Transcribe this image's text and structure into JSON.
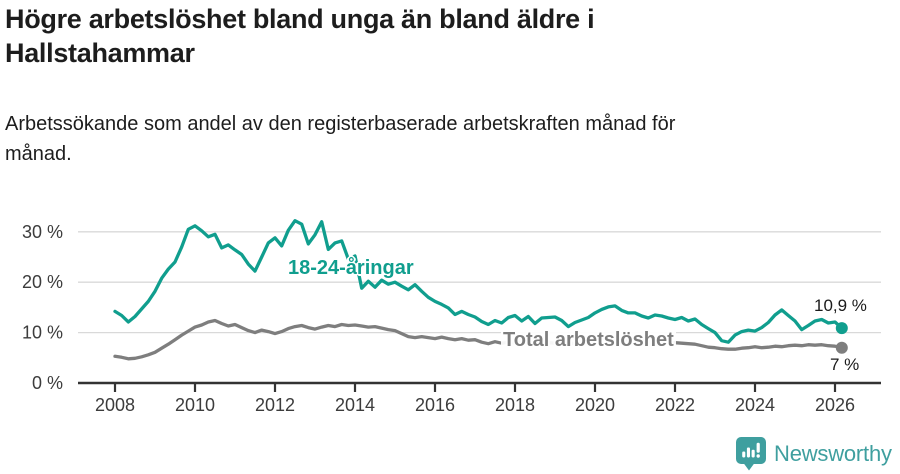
{
  "header": {
    "title": "Högre arbetslöshet bland unga än bland äldre i Hallstahammar",
    "title_lines": [
      "Högre arbetslöshet bland unga än bland äldre i",
      "Hallstahammar"
    ],
    "subtitle": "Arbetssökande som andel av den registerbaserade arbetskraften månad för månad.",
    "subtitle_lines": [
      "Arbetssökande som andel av den registerbaserade arbetskraften månad för",
      "månad."
    ]
  },
  "chart_data": {
    "type": "line",
    "title": "Högre arbetslöshet bland unga än bland äldre i Hallstahammar",
    "xlabel": "",
    "ylabel": "Arbetssökande som andel av den registerbaserade arbetskraften",
    "unit": "%",
    "grid": "horizontal",
    "legend_position": "inline-labels",
    "x_axis": {
      "ticks": [
        2008,
        2010,
        2012,
        2014,
        2016,
        2018,
        2020,
        2022,
        2024,
        2026
      ],
      "tick_labels": [
        "2008",
        "2010",
        "2012",
        "2014",
        "2016",
        "2018",
        "2020",
        "2022",
        "2024",
        "2026"
      ],
      "range": [
        2007.1,
        2027.2
      ]
    },
    "y_axis": {
      "ticks": [
        0,
        10,
        20,
        30
      ],
      "tick_labels": [
        "0 %",
        "10 %",
        "20 %",
        "30 %"
      ],
      "range": [
        0,
        33.5
      ]
    },
    "series": [
      {
        "name": "18-24-åringar",
        "label": "18-24-åringar",
        "color": "#109e8e",
        "start_year": 2008,
        "step_months": 2,
        "values": [
          14.2,
          13.4,
          12.1,
          13.2,
          14.7,
          16.2,
          18.2,
          20.8,
          22.6,
          24.0,
          27.0,
          30.5,
          31.2,
          30.2,
          29.0,
          29.5,
          26.8,
          27.4,
          26.4,
          25.5,
          23.6,
          22.2,
          25.0,
          27.8,
          28.8,
          27.2,
          30.3,
          32.2,
          31.5,
          27.6,
          29.4,
          32.0,
          26.5,
          27.8,
          28.2,
          24.6,
          25.2,
          18.8,
          20.2,
          19.0,
          20.4,
          19.6,
          20.0,
          19.2,
          18.5,
          19.5,
          18.2,
          17.0,
          16.2,
          15.6,
          14.9,
          13.6,
          14.2,
          13.6,
          13.1,
          12.2,
          11.6,
          12.4,
          11.9,
          13.0,
          13.4,
          12.3,
          13.2,
          11.8,
          12.9,
          13.0,
          13.1,
          12.4,
          11.2,
          12.0,
          12.5,
          13.0,
          13.9,
          14.6,
          15.1,
          15.3,
          14.4,
          13.9,
          13.9,
          13.3,
          12.9,
          13.5,
          13.3,
          12.9,
          12.6,
          13.0,
          12.3,
          12.7,
          11.6,
          10.8,
          10.0,
          8.4,
          8.1,
          9.5,
          10.2,
          10.5,
          10.3,
          11.0,
          12.0,
          13.5,
          14.5,
          13.4,
          12.3,
          10.6,
          11.4,
          12.3,
          12.6,
          11.9,
          12.1
        ],
        "end_point": {
          "year": 2026.17,
          "value": 10.9,
          "label": "10,9 %"
        }
      },
      {
        "name": "Total arbetslöshet",
        "label": "Total arbetslöshet",
        "color": "#7e7e7e",
        "start_year": 2008,
        "step_months": 2,
        "values": [
          5.3,
          5.1,
          4.8,
          4.9,
          5.2,
          5.6,
          6.1,
          6.9,
          7.7,
          8.6,
          9.5,
          10.3,
          11.1,
          11.5,
          12.1,
          12.4,
          11.8,
          11.3,
          11.6,
          11.0,
          10.4,
          10.0,
          10.5,
          10.2,
          9.8,
          10.2,
          10.8,
          11.2,
          11.4,
          11.0,
          10.7,
          11.1,
          11.4,
          11.2,
          11.6,
          11.4,
          11.5,
          11.3,
          11.1,
          11.2,
          10.9,
          10.6,
          10.4,
          9.8,
          9.2,
          9.0,
          9.2,
          9.0,
          8.8,
          9.1,
          8.8,
          8.6,
          8.8,
          8.5,
          8.6,
          8.1,
          7.8,
          8.2,
          7.9,
          8.1,
          8.0,
          7.9,
          8.1,
          7.9,
          8.1,
          8.0,
          7.9,
          8.1,
          8.0,
          7.8,
          8.0,
          8.2,
          8.3,
          8.8,
          9.2,
          9.0,
          8.8,
          8.6,
          8.6,
          8.4,
          8.2,
          8.1,
          8.0,
          7.9,
          8.0,
          7.9,
          7.8,
          7.7,
          7.4,
          7.1,
          7.0,
          6.8,
          6.7,
          6.7,
          6.9,
          7.0,
          7.2,
          7.0,
          7.1,
          7.3,
          7.2,
          7.4,
          7.5,
          7.4,
          7.6,
          7.5,
          7.6,
          7.4,
          7.3
        ],
        "end_point": {
          "year": 2026.17,
          "value": 7.0,
          "label": "7 %"
        }
      }
    ],
    "axis_colors": {
      "grid": "#d9d9d9",
      "baseline": "#333333",
      "tick_text": "#3c3c3c"
    }
  },
  "footer": {
    "brand": "Newsworthy",
    "brand_color": "#3f9f9f",
    "logo_icon": "newsworthy-bar-chart-bubble-icon"
  }
}
